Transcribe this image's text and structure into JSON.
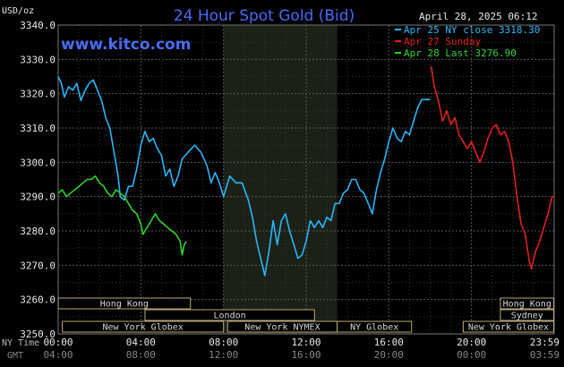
{
  "chart_data": {
    "type": "line",
    "title": "24 Hour Spot Gold (Bid)",
    "source": "www.kitco.com",
    "date": "April 28, 2025 06:12",
    "ylabel": "USD/oz",
    "ylim": [
      3250,
      3340
    ],
    "y_ticks": [
      "3340.0",
      "3330.0",
      "3320.0",
      "3310.0",
      "3300.0",
      "3290.0",
      "3280.0",
      "3270.0",
      "3260.0",
      "3250.0"
    ],
    "xlim": [
      0,
      24
    ],
    "x_row_labels": {
      "ny": "NY Time",
      "gmt": "GMT"
    },
    "x_ticks_ny": [
      "00:00",
      "04:00",
      "08:00",
      "12:00",
      "16:00",
      "20:00",
      "23:59"
    ],
    "x_ticks_gmt": [
      "04:00",
      "08:00",
      "12:00",
      "16:00",
      "20:00",
      "00:00",
      "03:59"
    ],
    "grid": true,
    "legend_position": "top-right",
    "shaded_period": {
      "start": 8,
      "end": 13.5
    },
    "series": [
      {
        "name": "Apr 25 NY close 3318.30",
        "color": "#29b6f6",
        "points": [
          [
            0,
            3325
          ],
          [
            0.15,
            3323
          ],
          [
            0.3,
            3319
          ],
          [
            0.5,
            3322
          ],
          [
            0.7,
            3321
          ],
          [
            0.9,
            3323
          ],
          [
            1.1,
            3318
          ],
          [
            1.3,
            3321
          ],
          [
            1.5,
            3323
          ],
          [
            1.7,
            3324
          ],
          [
            1.9,
            3321
          ],
          [
            2.1,
            3318
          ],
          [
            2.3,
            3313
          ],
          [
            2.5,
            3310
          ],
          [
            2.7,
            3303
          ],
          [
            2.9,
            3296
          ],
          [
            3.0,
            3290
          ],
          [
            3.2,
            3289
          ],
          [
            3.4,
            3293
          ],
          [
            3.6,
            3293
          ],
          [
            3.8,
            3298
          ],
          [
            4.0,
            3305
          ],
          [
            4.2,
            3309
          ],
          [
            4.4,
            3306
          ],
          [
            4.6,
            3307
          ],
          [
            4.8,
            3304
          ],
          [
            5.0,
            3302
          ],
          [
            5.2,
            3296
          ],
          [
            5.4,
            3298
          ],
          [
            5.6,
            3293
          ],
          [
            5.8,
            3296
          ],
          [
            6.0,
            3301
          ],
          [
            6.3,
            3303
          ],
          [
            6.6,
            3305
          ],
          [
            6.9,
            3303
          ],
          [
            7.2,
            3299
          ],
          [
            7.4,
            3294
          ],
          [
            7.6,
            3297
          ],
          [
            7.8,
            3294
          ],
          [
            8.0,
            3290
          ],
          [
            8.3,
            3296
          ],
          [
            8.6,
            3294
          ],
          [
            8.9,
            3294
          ],
          [
            9.2,
            3289
          ],
          [
            9.4,
            3284
          ],
          [
            9.6,
            3277
          ],
          [
            9.8,
            3272
          ],
          [
            10.0,
            3267
          ],
          [
            10.2,
            3274
          ],
          [
            10.4,
            3283
          ],
          [
            10.6,
            3276
          ],
          [
            10.8,
            3283
          ],
          [
            11.0,
            3285
          ],
          [
            11.2,
            3280
          ],
          [
            11.4,
            3276
          ],
          [
            11.6,
            3272
          ],
          [
            11.8,
            3273
          ],
          [
            12.0,
            3277
          ],
          [
            12.2,
            3283
          ],
          [
            12.4,
            3281
          ],
          [
            12.6,
            3283
          ],
          [
            12.8,
            3281
          ],
          [
            13.0,
            3284
          ],
          [
            13.2,
            3283
          ],
          [
            13.4,
            3288
          ],
          [
            13.6,
            3288
          ],
          [
            13.8,
            3291
          ],
          [
            14.0,
            3292
          ],
          [
            14.2,
            3295
          ],
          [
            14.4,
            3295
          ],
          [
            14.6,
            3292
          ],
          [
            14.8,
            3291
          ],
          [
            15.0,
            3288
          ],
          [
            15.2,
            3285
          ],
          [
            15.4,
            3292
          ],
          [
            15.6,
            3297
          ],
          [
            15.8,
            3301
          ],
          [
            16.0,
            3306
          ],
          [
            16.2,
            3310
          ],
          [
            16.4,
            3307
          ],
          [
            16.6,
            3306
          ],
          [
            16.8,
            3309
          ],
          [
            17.0,
            3308
          ],
          [
            17.2,
            3312
          ],
          [
            17.4,
            3316
          ],
          [
            17.6,
            3318.3
          ],
          [
            17.8,
            3318.3
          ],
          [
            18.0,
            3318.3
          ]
        ]
      },
      {
        "name": "Apr 27 Sunday",
        "color": "#e02020",
        "points": [
          [
            18.05,
            3328
          ],
          [
            18.2,
            3322
          ],
          [
            18.4,
            3318
          ],
          [
            18.6,
            3312
          ],
          [
            18.8,
            3315
          ],
          [
            19.0,
            3311
          ],
          [
            19.2,
            3313
          ],
          [
            19.4,
            3308
          ],
          [
            19.6,
            3306
          ],
          [
            19.8,
            3304
          ],
          [
            20.0,
            3306
          ],
          [
            20.2,
            3303
          ],
          [
            20.4,
            3300
          ],
          [
            20.6,
            3303
          ],
          [
            20.8,
            3307
          ],
          [
            21.0,
            3310
          ],
          [
            21.2,
            3311
          ],
          [
            21.4,
            3308
          ],
          [
            21.6,
            3309
          ],
          [
            21.8,
            3306
          ],
          [
            22.0,
            3300
          ],
          [
            22.2,
            3290
          ],
          [
            22.4,
            3282
          ],
          [
            22.6,
            3279
          ],
          [
            22.8,
            3271
          ],
          [
            22.9,
            3269
          ],
          [
            23.1,
            3274
          ],
          [
            23.3,
            3277
          ],
          [
            23.5,
            3281
          ],
          [
            23.7,
            3285
          ],
          [
            23.9,
            3290
          ],
          [
            24.0,
            3290
          ]
        ]
      },
      {
        "name": "Apr 28 Last 3276.90",
        "color": "#2ed12e",
        "points": [
          [
            0,
            3291
          ],
          [
            0.2,
            3292
          ],
          [
            0.4,
            3290
          ],
          [
            0.6,
            3291
          ],
          [
            0.8,
            3292
          ],
          [
            1.0,
            3293
          ],
          [
            1.2,
            3294
          ],
          [
            1.4,
            3295
          ],
          [
            1.6,
            3295
          ],
          [
            1.8,
            3296
          ],
          [
            2.0,
            3294
          ],
          [
            2.2,
            3293
          ],
          [
            2.4,
            3291
          ],
          [
            2.6,
            3290
          ],
          [
            2.8,
            3292
          ],
          [
            3.0,
            3291
          ],
          [
            3.2,
            3290
          ],
          [
            3.4,
            3288
          ],
          [
            3.6,
            3286
          ],
          [
            3.8,
            3285
          ],
          [
            4.0,
            3282
          ],
          [
            4.1,
            3279
          ],
          [
            4.3,
            3281
          ],
          [
            4.5,
            3283
          ],
          [
            4.7,
            3285
          ],
          [
            4.9,
            3283
          ],
          [
            5.1,
            3282
          ],
          [
            5.3,
            3281
          ],
          [
            5.5,
            3280
          ],
          [
            5.7,
            3279
          ],
          [
            5.9,
            3277
          ],
          [
            6.0,
            3273
          ],
          [
            6.1,
            3276
          ],
          [
            6.2,
            3276.9
          ]
        ]
      }
    ],
    "sessions": {
      "asia": [
        {
          "label": "Hong Kong",
          "start": 0,
          "end": 6.4,
          "row": 1
        },
        {
          "label": "Hong Kong",
          "start": 21.4,
          "end": 23.98,
          "row": 1
        }
      ],
      "europe": [
        {
          "label": "London",
          "start": 4.2,
          "end": 12.4,
          "row": 2
        },
        {
          "label": "Sydney",
          "start": 21.4,
          "end": 23.98,
          "row": 2
        }
      ],
      "americas": [
        {
          "label": "New York Globex",
          "start": 0.2,
          "end": 8.0,
          "row": 3
        },
        {
          "label": "New York NYMEX",
          "start": 8.2,
          "end": 13.5,
          "row": 3
        },
        {
          "label": "NY Globex",
          "start": 13.5,
          "end": 17.1,
          "row": 3
        },
        {
          "label": "New York Globex",
          "start": 19.6,
          "end": 23.98,
          "row": 3
        }
      ]
    }
  }
}
